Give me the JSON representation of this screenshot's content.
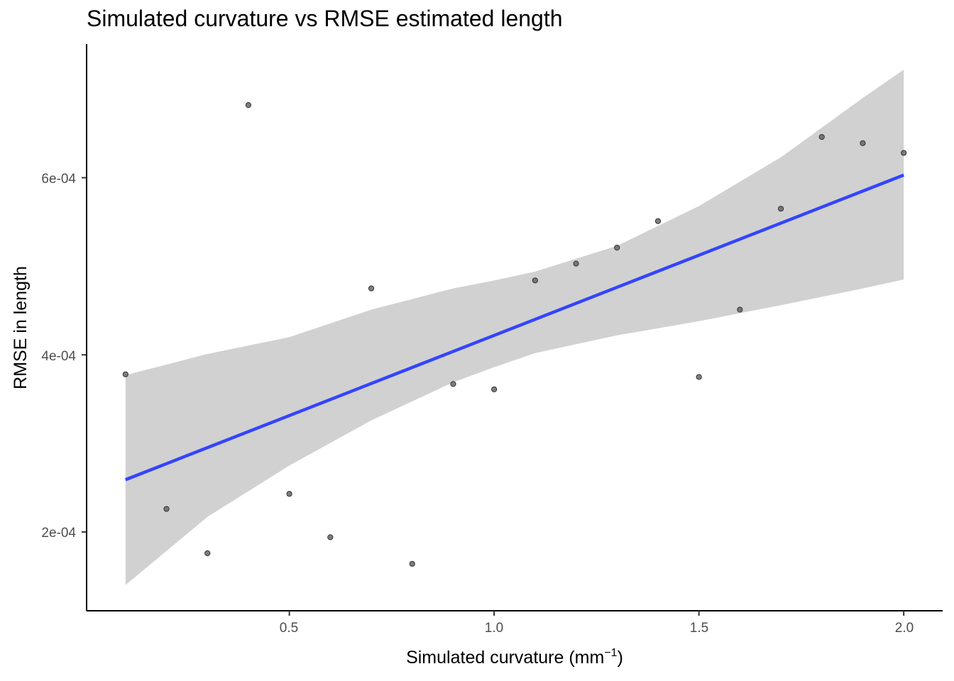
{
  "chart_data": {
    "type": "scatter",
    "title": "Simulated curvature vs RMSE estimated length",
    "xlabel": "Simulated curvature (mm",
    "xlabel_superscript": "−1",
    "xlabel_suffix": ")",
    "ylabel": "RMSE in length",
    "xlim": [
      0.005,
      2.095
    ],
    "ylim": [
      0.000111,
      0.000751
    ],
    "x_ticks": [
      0.5,
      1.0,
      1.5,
      2.0
    ],
    "x_tick_labels": [
      "0.5",
      "1.0",
      "1.5",
      "2.0"
    ],
    "y_ticks": [
      0.0002,
      0.0004,
      0.0006
    ],
    "y_tick_labels": [
      "2e-04",
      "4e-04",
      "6e-04"
    ],
    "grid": false,
    "series": [
      {
        "kind": "points",
        "color": "#333333",
        "points": [
          {
            "x": 0.1,
            "y": 0.000378
          },
          {
            "x": 0.2,
            "y": 0.000226
          },
          {
            "x": 0.3,
            "y": 0.000176
          },
          {
            "x": 0.4,
            "y": 0.000682
          },
          {
            "x": 0.5,
            "y": 0.000243
          },
          {
            "x": 0.6,
            "y": 0.000194
          },
          {
            "x": 0.7,
            "y": 0.000475
          },
          {
            "x": 0.8,
            "y": 0.000164
          },
          {
            "x": 0.9,
            "y": 0.000367
          },
          {
            "x": 1.0,
            "y": 0.000361
          },
          {
            "x": 1.1,
            "y": 0.000484
          },
          {
            "x": 1.2,
            "y": 0.000503
          },
          {
            "x": 1.3,
            "y": 0.000521
          },
          {
            "x": 1.4,
            "y": 0.000551
          },
          {
            "x": 1.5,
            "y": 0.000375
          },
          {
            "x": 1.6,
            "y": 0.000451
          },
          {
            "x": 1.7,
            "y": 0.000565
          },
          {
            "x": 1.8,
            "y": 0.000646
          },
          {
            "x": 1.9,
            "y": 0.000639
          },
          {
            "x": 2.0,
            "y": 0.000628
          }
        ]
      },
      {
        "kind": "regression-line",
        "color": "#3344ff",
        "x": [
          0.1,
          2.0
        ],
        "y": [
          0.000259,
          0.000603
        ]
      },
      {
        "kind": "confidence-band",
        "color": "#d1d1d1",
        "x": [
          0.1,
          0.3,
          0.5,
          0.7,
          0.9,
          1.0,
          1.1,
          1.3,
          1.5,
          1.7,
          1.9,
          2.0
        ],
        "lower": [
          0.00014,
          0.000217,
          0.000275,
          0.000326,
          0.000369,
          0.000386,
          0.000402,
          0.000422,
          0.000438,
          0.000456,
          0.000475,
          0.000485
        ],
        "upper": [
          0.000377,
          0.000401,
          0.00042,
          0.000451,
          0.000475,
          0.000484,
          0.000494,
          0.000523,
          0.000568,
          0.000623,
          0.00069,
          0.000722
        ]
      }
    ]
  }
}
